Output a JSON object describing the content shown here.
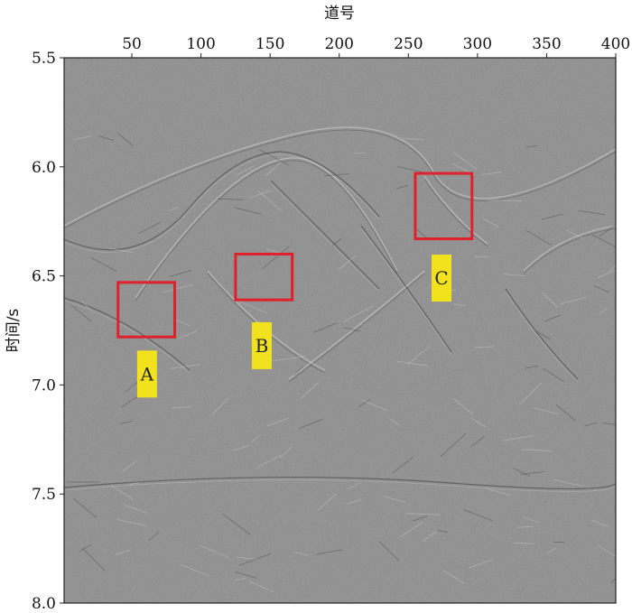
{
  "chart_data": {
    "type": "heatmap",
    "title": "",
    "xlabel": "道号",
    "ylabel": "时间/s",
    "x_ticks": [
      50,
      100,
      150,
      200,
      250,
      300,
      350,
      400
    ],
    "y_ticks": [
      "5.5",
      "6.0",
      "6.5",
      "7.0",
      "7.5",
      "8.0"
    ],
    "xlim": [
      1,
      400
    ],
    "ylim": [
      5.5,
      8.0
    ],
    "y_inverted": true,
    "x_axis_position": "top",
    "colormap": "grayscale seismic section",
    "grid": false,
    "annotations": [
      {
        "label": "A",
        "box_x": [
          40,
          81
        ],
        "box_t": [
          6.53,
          6.78
        ],
        "label_x": 61,
        "label_t": 6.95
      },
      {
        "label": "B",
        "box_x": [
          125,
          166
        ],
        "box_t": [
          6.4,
          6.61
        ],
        "label_x": 144,
        "label_t": 6.82
      },
      {
        "label": "C",
        "box_x": [
          255,
          296
        ],
        "box_t": [
          6.03,
          6.33
        ],
        "label_x": 274,
        "label_t": 6.51
      }
    ],
    "colors": {
      "box_edge": "#e0202a",
      "label_bg": "#f2e21d",
      "background": "#8e8e8e"
    }
  }
}
